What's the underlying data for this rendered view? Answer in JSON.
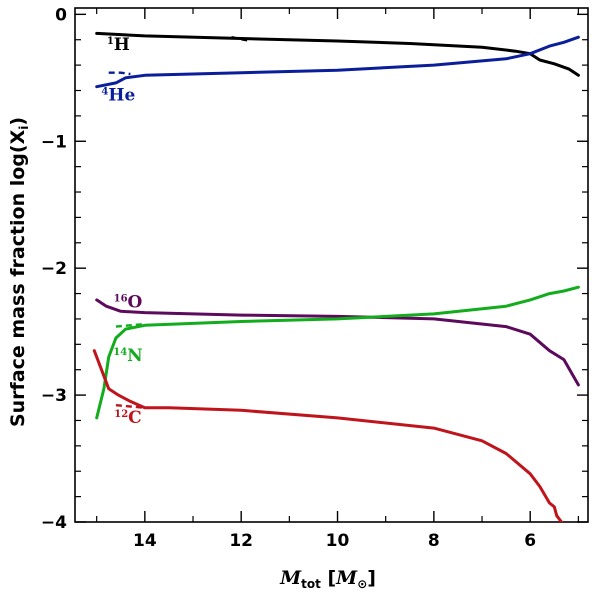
{
  "chart_data": {
    "type": "line",
    "title": "",
    "xlabel": "M_tot [M_⊙]",
    "xlabel_parts": {
      "main": "M",
      "sub": "tot",
      "unit_open": " [",
      "unit_M": "M",
      "unit_sub": "⊙",
      "unit_close": "]"
    },
    "ylabel": "Surface mass fraction  log(X_i)",
    "ylabel_parts": {
      "main": "Surface mass fraction  log(X",
      "sub": "i",
      "close": ")"
    },
    "xlim": [
      15.45,
      4.8
    ],
    "ylim": [
      -4,
      0.05
    ],
    "xticks": [
      14,
      12,
      10,
      8,
      6
    ],
    "xtick_labels": [
      "14",
      "12",
      "10",
      "8",
      "6"
    ],
    "yticks": [
      0,
      -1,
      -2,
      -3,
      -4
    ],
    "ytick_labels": [
      "0",
      "−1",
      "−2",
      "−3",
      "−4"
    ],
    "grid": false,
    "series": [
      {
        "name": "1H",
        "mass": "1",
        "symbol": "H",
        "color": "#000000",
        "label_pos": [
          14.55,
          -0.28
        ],
        "x": [
          15.0,
          14.0,
          12.0,
          10.0,
          8.5,
          7.0,
          6.3,
          6.0,
          5.8,
          5.5,
          5.2,
          5.0
        ],
        "y": [
          -0.15,
          -0.17,
          -0.19,
          -0.21,
          -0.23,
          -0.26,
          -0.29,
          -0.31,
          -0.36,
          -0.39,
          -0.43,
          -0.48
        ],
        "dashed": {
          "x": [
            12.2,
            11.95,
            11.8
          ],
          "y": [
            -0.18,
            -0.2,
            -0.21
          ]
        }
      },
      {
        "name": "4He",
        "mass": "4",
        "symbol": "He",
        "color": "#0a1e9a",
        "label_pos": [
          14.55,
          -0.68
        ],
        "x": [
          15.0,
          14.6,
          14.4,
          14.0,
          12.0,
          10.0,
          8.0,
          6.5,
          6.0,
          5.6,
          5.3,
          5.0
        ],
        "y": [
          -0.57,
          -0.54,
          -0.5,
          -0.48,
          -0.46,
          -0.44,
          -0.4,
          -0.35,
          -0.31,
          -0.25,
          -0.22,
          -0.18
        ],
        "dashed": {
          "x": [
            14.75,
            14.5,
            14.3
          ],
          "y": [
            -0.46,
            -0.46,
            -0.47
          ]
        }
      },
      {
        "name": "16O",
        "mass": "16",
        "symbol": "O",
        "color": "#5c0a5c",
        "label_pos": [
          14.35,
          -2.31
        ],
        "x": [
          15.0,
          14.8,
          14.5,
          14.0,
          13.0,
          12.0,
          10.0,
          8.0,
          6.5,
          6.0,
          5.6,
          5.3,
          5.0
        ],
        "y": [
          -2.25,
          -2.3,
          -2.34,
          -2.35,
          -2.36,
          -2.37,
          -2.38,
          -2.4,
          -2.46,
          -2.52,
          -2.65,
          -2.72,
          -2.92
        ],
        "dashed": null
      },
      {
        "name": "14N",
        "mass": "14",
        "symbol": "N",
        "color": "#12ad1c",
        "label_pos": [
          14.35,
          -2.73
        ],
        "x": [
          15.0,
          14.85,
          14.75,
          14.6,
          14.4,
          14.0,
          12.0,
          10.0,
          8.0,
          6.5,
          6.0,
          5.6,
          5.3,
          5.0
        ],
        "y": [
          -3.18,
          -2.95,
          -2.7,
          -2.55,
          -2.48,
          -2.45,
          -2.42,
          -2.4,
          -2.36,
          -2.3,
          -2.25,
          -2.2,
          -2.18,
          -2.15
        ],
        "dashed": {
          "x": [
            14.6,
            14.3,
            14.0
          ],
          "y": [
            -2.46,
            -2.45,
            -2.44
          ]
        }
      },
      {
        "name": "12C",
        "mass": "12",
        "symbol": "C",
        "color": "#c0141c",
        "label_pos": [
          14.35,
          -3.22
        ],
        "x": [
          15.05,
          14.9,
          14.75,
          14.55,
          14.3,
          14.0,
          13.5,
          12.0,
          10.0,
          8.0,
          7.0,
          6.5,
          6.0,
          5.8,
          5.6,
          5.5,
          5.45,
          5.35
        ],
        "y": [
          -2.65,
          -2.8,
          -2.95,
          -3.0,
          -3.05,
          -3.1,
          -3.1,
          -3.12,
          -3.18,
          -3.26,
          -3.36,
          -3.46,
          -3.62,
          -3.72,
          -3.85,
          -3.88,
          -3.95,
          -4.0
        ],
        "dashed": {
          "x": [
            14.6,
            14.3,
            14.0
          ],
          "y": [
            -3.08,
            -3.09,
            -3.1
          ]
        }
      }
    ]
  }
}
